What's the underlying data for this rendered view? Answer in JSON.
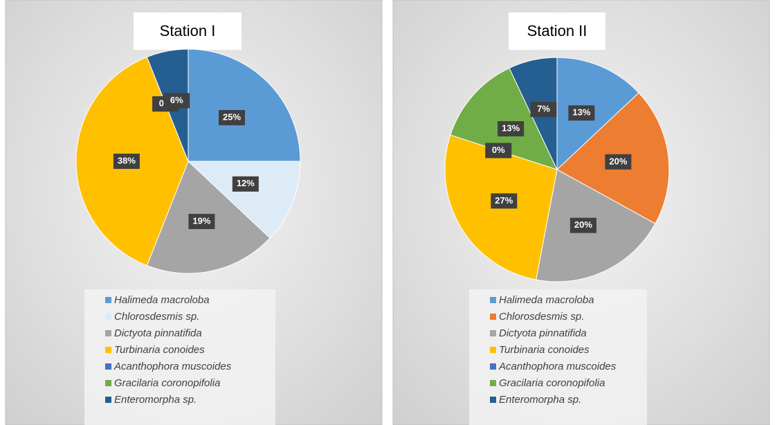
{
  "chart_data": [
    {
      "type": "pie",
      "title": "Station I",
      "categories": [
        "Halimeda macroloba",
        "Chlorosdesmis sp.",
        "Dictyota pinnatifida",
        "Turbinaria conoides",
        "Acanthophora muscoides",
        "Gracilaria coronopifolia",
        "Enteromorpha sp."
      ],
      "values": [
        25,
        12,
        19,
        38,
        0,
        0,
        6
      ],
      "value_labels": [
        "25%",
        "12%",
        "19%",
        "38%",
        "0%",
        "0%",
        "6%"
      ],
      "colors": [
        "#5b9bd5",
        "#ddebf7",
        "#a5a5a5",
        "#ffc000",
        "#4472c4",
        "#70ad47",
        "#255e91"
      ]
    },
    {
      "type": "pie",
      "title": "Station II",
      "categories": [
        "Halimeda macroloba",
        "Chlorosdesmis sp.",
        "Dictyota pinnatifida",
        "Turbinaria conoides",
        "Acanthophora muscoides",
        "Gracilaria coronopifolia",
        "Enteromorpha sp."
      ],
      "values": [
        13,
        20,
        20,
        27,
        0,
        13,
        7
      ],
      "value_labels": [
        "13%",
        "20%",
        "20%",
        "27%",
        "0%",
        "13%",
        "7%"
      ],
      "colors": [
        "#5b9bd5",
        "#ed7d31",
        "#a5a5a5",
        "#ffc000",
        "#4472c4",
        "#70ad47",
        "#255e91"
      ]
    }
  ]
}
